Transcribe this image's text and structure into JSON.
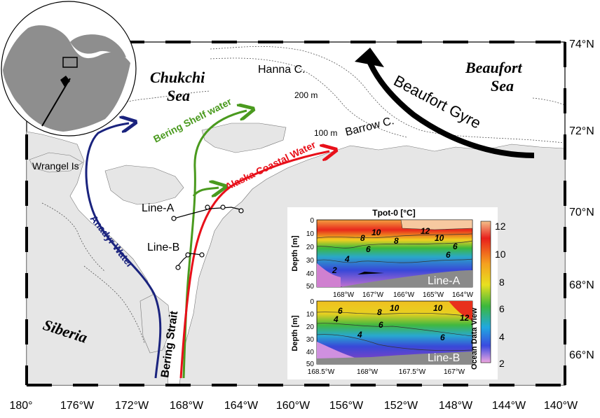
{
  "map": {
    "regions": {
      "chukchi_line1": "Chukchi",
      "chukchi_line2": "Sea",
      "beaufort_line1": "Beaufort",
      "beaufort_line2": "Sea",
      "siberia": "Siberia",
      "wrangel": "Wrangel Is",
      "bering_strait": "Bering Strait"
    },
    "features": {
      "hanna": "Hanna C.",
      "barrow": "Barrow C.",
      "depth_200": "200 m",
      "depth_100": "100 m",
      "beaufort_gyre": "Beaufort Gyre"
    },
    "currents": {
      "bering_shelf": "Bering Shelf water",
      "alaska_coastal": "Alaska Coastal Water",
      "anadyr": "Anadyr Water"
    },
    "transects": {
      "line_a": "Line-A",
      "line_b": "Line-B"
    },
    "lat_labels": [
      "74°N",
      "72°N",
      "70°N",
      "68°N",
      "66°N"
    ],
    "lon_labels": [
      "180°",
      "176°W",
      "172°W",
      "168°W",
      "164°W",
      "160°W",
      "156°W",
      "152°W",
      "148°W",
      "144°W",
      "140°W"
    ],
    "colors": {
      "anadyr": "#1a237e",
      "bering_shelf": "#4a9a1e",
      "alaska_coastal": "#e8101a",
      "land": "#e6e6e6",
      "gyre": "#000000"
    }
  },
  "inset": {
    "title": "Tpot-0 [°C]",
    "colorbar_title": "Ocean Data View",
    "colorbar_ticks": [
      "12",
      "10",
      "8",
      "6",
      "4",
      "2"
    ],
    "panel_a": {
      "name": "Line-A",
      "ylabel": "Depth [m]",
      "yticks": [
        "0",
        "10",
        "20",
        "30",
        "40",
        "50"
      ],
      "xticks": [
        "168°W",
        "167°W",
        "166°W",
        "165°W",
        "164°W"
      ],
      "contour_labels": [
        "10",
        "12",
        "8",
        "8",
        "10",
        "6",
        "6",
        "6",
        "4",
        "2"
      ]
    },
    "panel_b": {
      "name": "Line-B",
      "ylabel": "Depth [m]",
      "yticks": [
        "0",
        "10",
        "20",
        "30",
        "40",
        "50"
      ],
      "xticks": [
        "168.5°W",
        "168°W",
        "167.5°W",
        "167°W"
      ],
      "contour_labels": [
        "6",
        "4",
        "8",
        "10",
        "10",
        "12",
        "6",
        "4",
        "6"
      ]
    }
  }
}
